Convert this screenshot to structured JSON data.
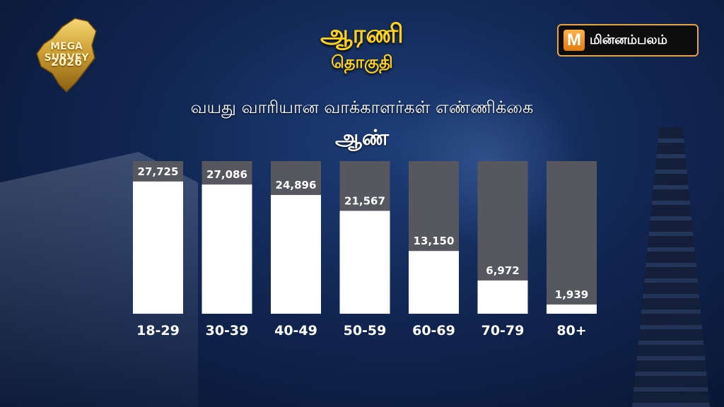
{
  "header": {
    "title": "ஆரணி",
    "subtitle": "தொகுதி",
    "heading": "வயது வாரியான வாக்காளர்கள் எண்ணிக்கை",
    "gender": "ஆண்"
  },
  "badge": {
    "line1": "MEGA SURVEY",
    "line2": "2026"
  },
  "logo": {
    "mark": "M",
    "text": "மின்னம்பலம்"
  },
  "colors": {
    "bar_fill": "#ffffff",
    "bar_track": "#56575f",
    "title": "#ffd11a",
    "logo_border": "#e8a33a"
  },
  "chart_data": {
    "type": "bar",
    "title": "வயது வாரியான வாக்காளர்கள் எண்ணிக்கை",
    "categories": [
      "18-29",
      "30-39",
      "40-49",
      "50-59",
      "60-69",
      "70-79",
      "80+"
    ],
    "values": [
      27725,
      27086,
      24896,
      21567,
      13150,
      6972,
      1939
    ],
    "value_labels": [
      "27,725",
      "27,086",
      "24,896",
      "21,567",
      "13,150",
      "6,972",
      "1,939"
    ],
    "ylim": [
      0,
      32000
    ],
    "grid": false,
    "legend": "none"
  }
}
